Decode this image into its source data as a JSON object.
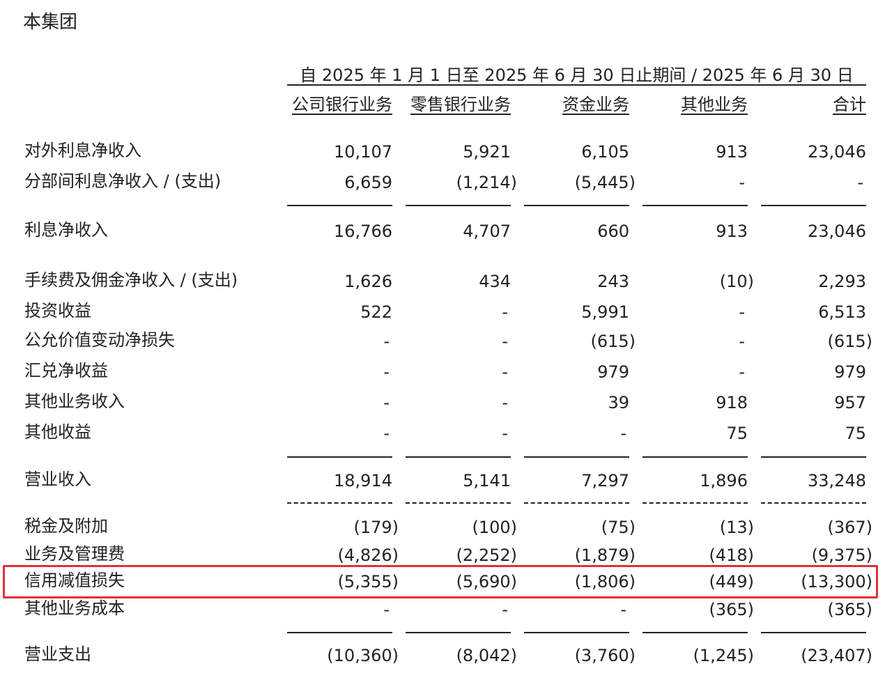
{
  "title": "本集团",
  "header": {
    "period": "自 2025 年 1 月 1 日至 2025 年 6 月 30 日止期间 / 2025 年 6 月 30 日",
    "columns": [
      "公司银行业务",
      "零售银行业务",
      "资金业务",
      "其他业务",
      "合计"
    ]
  },
  "table": {
    "rows": [
      {
        "label": "对外利息净收入",
        "cells": [
          "10,107",
          "5,921",
          "6,105",
          "913",
          "23,046"
        ]
      },
      {
        "label": "分部间利息净收入 / (支出)",
        "cells": [
          "6,659",
          "(1,214)",
          "(5,445)",
          "-",
          "-"
        ]
      },
      {
        "label": "利息净收入",
        "cells": [
          "16,766",
          "4,707",
          "660",
          "913",
          "23,046"
        ]
      },
      {
        "label": "手续费及佣金净收入 / (支出)",
        "cells": [
          "1,626",
          "434",
          "243",
          "(10)",
          "2,293"
        ]
      },
      {
        "label": "投资收益",
        "cells": [
          "522",
          "-",
          "5,991",
          "-",
          "6,513"
        ]
      },
      {
        "label": "公允价值变动净损失",
        "cells": [
          "-",
          "-",
          "(615)",
          "-",
          "(615)"
        ]
      },
      {
        "label": "汇兑净收益",
        "cells": [
          "-",
          "-",
          "979",
          "-",
          "979"
        ]
      },
      {
        "label": "其他业务收入",
        "cells": [
          "-",
          "-",
          "39",
          "918",
          "957"
        ]
      },
      {
        "label": "其他收益",
        "cells": [
          "-",
          "-",
          "-",
          "75",
          "75"
        ]
      },
      {
        "label": "营业收入",
        "cells": [
          "18,914",
          "5,141",
          "7,297",
          "1,896",
          "33,248"
        ]
      },
      {
        "label": "税金及附加",
        "cells": [
          "(179)",
          "(100)",
          "(75)",
          "(13)",
          "(367)"
        ]
      },
      {
        "label": "业务及管理费",
        "cells": [
          "(4,826)",
          "(2,252)",
          "(1,879)",
          "(418)",
          "(9,375)"
        ]
      },
      {
        "label": "信用减值损失",
        "cells": [
          "(5,355)",
          "(5,690)",
          "(1,806)",
          "(449)",
          "(13,300)"
        ]
      },
      {
        "label": "其他业务成本",
        "cells": [
          "-",
          "-",
          "-",
          "(365)",
          "(365)"
        ]
      },
      {
        "label": "营业支出",
        "cells": [
          "(10,360)",
          "(8,042)",
          "(3,760)",
          "(1,245)",
          "(23,407)"
        ]
      }
    ]
  }
}
